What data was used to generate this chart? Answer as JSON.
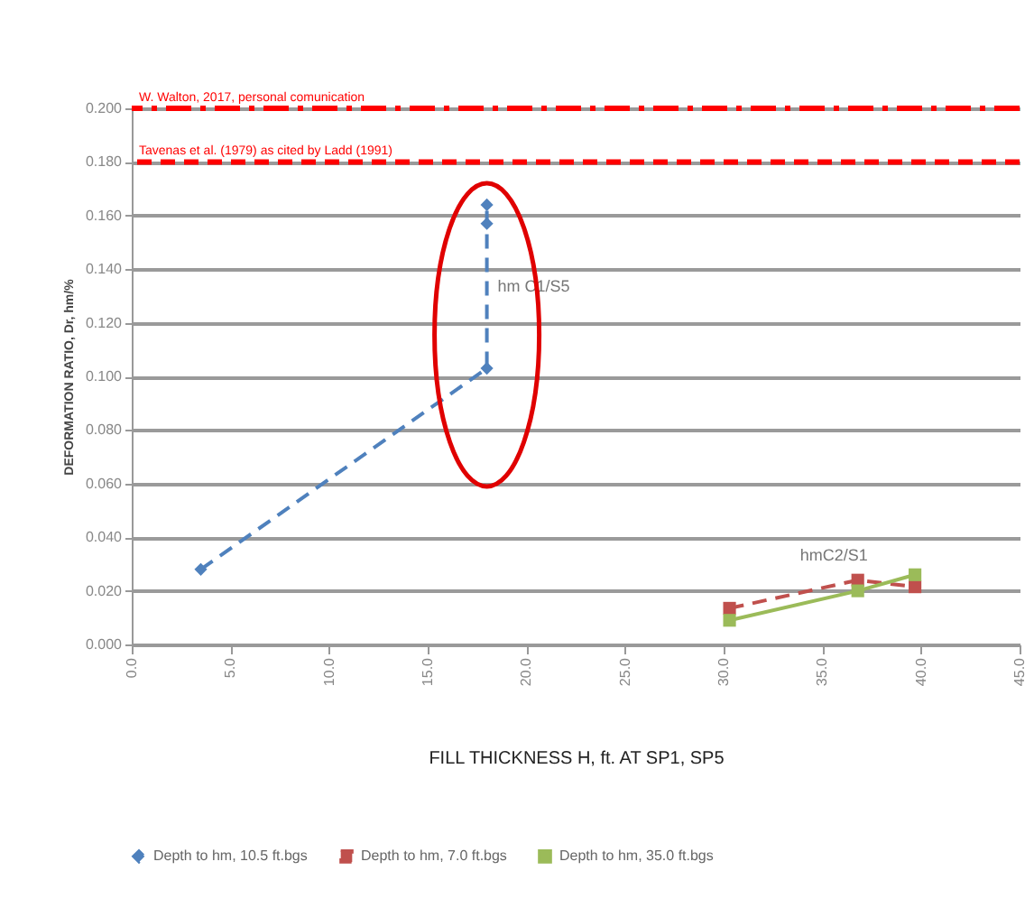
{
  "chart_data": {
    "type": "line",
    "xlabel": "FILL THICKNESS H, ft. AT SP1, SP5",
    "ylabel": "DEFORMATION RATIO, Dr, hm/%",
    "xlim": [
      0,
      45
    ],
    "xticks": [
      {
        "value": 0,
        "label": "0.0"
      },
      {
        "value": 5,
        "label": "5.0"
      },
      {
        "value": 10,
        "label": "10.0"
      },
      {
        "value": 15,
        "label": "15.0"
      },
      {
        "value": 20,
        "label": "20.0"
      },
      {
        "value": 25,
        "label": "25.0"
      },
      {
        "value": 30,
        "label": "30.0"
      },
      {
        "value": 35,
        "label": "35.0"
      },
      {
        "value": 40,
        "label": "40.0"
      },
      {
        "value": 45,
        "label": "45.0"
      }
    ],
    "ylim": [
      0,
      0.2
    ],
    "yticks": [
      {
        "value": 0,
        "label": "0.000"
      },
      {
        "value": 0.02,
        "label": "0.020"
      },
      {
        "value": 0.04,
        "label": "0.040"
      },
      {
        "value": 0.06,
        "label": "0.060"
      },
      {
        "value": 0.08,
        "label": "0.080"
      },
      {
        "value": 0.1,
        "label": "0.100"
      },
      {
        "value": 0.12,
        "label": "0.120"
      },
      {
        "value": 0.14,
        "label": "0.140"
      },
      {
        "value": 0.16,
        "label": "0.160"
      },
      {
        "value": 0.18,
        "label": "0.180"
      },
      {
        "value": 0.2,
        "label": "0.200"
      }
    ],
    "grid": "y",
    "legend": "bottom",
    "series": [
      {
        "name": "Depth to hm, 10.5 ft.bgs",
        "color": "#4f81bd",
        "marker": "diamond",
        "line_style": "dashed",
        "x": [
          3.5,
          18,
          18,
          18
        ],
        "values": [
          0.028,
          0.103,
          0.157,
          0.164
        ]
      },
      {
        "name": "Depth to hm, 7.0 ft.bgs",
        "color": "#c0504d",
        "marker": "square",
        "line_style": "dashed",
        "x": [
          30.3,
          36.8,
          39.7
        ],
        "values": [
          0.0135,
          0.024,
          0.0215
        ]
      },
      {
        "name": "Depth to hm, 35.0 ft.bgs",
        "color": "#9bbb59",
        "marker": "square",
        "line_style": "solid",
        "x": [
          30.3,
          36.8,
          39.7
        ],
        "values": [
          0.009,
          0.02,
          0.026
        ]
      }
    ],
    "ref_lines": [
      {
        "axis": "y",
        "value": 0.2,
        "label": "W. Walton, 2017, personal comunication",
        "color": "#ff0000",
        "line_style": "dashdot"
      },
      {
        "axis": "y",
        "value": 0.18,
        "label": "Tavenas et al. (1979) as cited by Ladd (1991)",
        "color": "#ff0000",
        "line_style": "dashed"
      }
    ],
    "annotations": [
      "hm C1/S5",
      "hmC2/S1"
    ]
  }
}
